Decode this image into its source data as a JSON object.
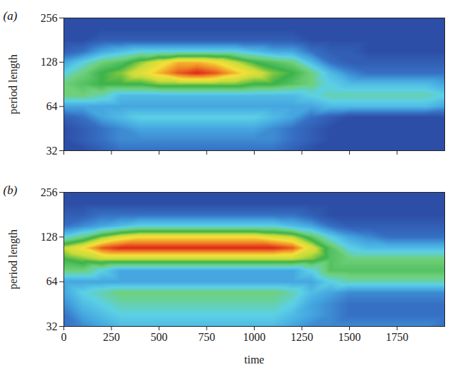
{
  "chart_data": [
    {
      "type": "heatmap",
      "title": "(a)",
      "y_label": "period length",
      "x": [
        0,
        100,
        200,
        300,
        400,
        500,
        600,
        700,
        800,
        900,
        1000,
        1100,
        1200,
        1300,
        1400,
        1500,
        1600,
        1700,
        1800,
        1900,
        2000
      ],
      "y": [
        32,
        38,
        45,
        54,
        64,
        76,
        91,
        108,
        128,
        152,
        181,
        215,
        256
      ],
      "cells": [
        [
          1,
          1,
          1.5,
          2,
          2,
          2,
          2,
          2,
          2,
          2,
          2,
          2,
          1.5,
          1,
          1,
          1,
          1,
          1,
          1,
          1,
          1
        ],
        [
          1,
          1.5,
          2,
          2.5,
          2.5,
          2.5,
          2.5,
          2.5,
          2.5,
          2.5,
          2.5,
          2.5,
          2,
          1.5,
          1,
          1,
          1,
          1,
          1,
          1,
          1
        ],
        [
          1,
          1.5,
          2,
          2.5,
          3,
          3,
          3,
          3,
          3,
          3,
          3,
          2.5,
          2,
          1.5,
          1,
          1,
          1,
          1,
          1,
          1,
          1
        ],
        [
          1.5,
          2,
          3,
          3.5,
          4,
          4,
          4,
          4,
          4,
          4,
          4,
          3.5,
          3,
          2,
          1.5,
          1,
          1,
          1,
          1,
          1,
          1
        ],
        [
          3,
          3,
          3,
          3,
          3,
          3,
          3,
          3,
          3,
          3,
          3,
          3,
          3,
          3,
          3.5,
          3.5,
          3.5,
          3.5,
          3.5,
          3.5,
          3
        ],
        [
          5,
          5,
          4.5,
          3.5,
          3.5,
          3.5,
          3.5,
          3.5,
          3.5,
          3.5,
          3.5,
          3.5,
          3.5,
          4,
          4.5,
          4.5,
          4.5,
          4.5,
          4.5,
          4.5,
          4
        ],
        [
          5,
          5.5,
          6,
          6,
          6,
          6.5,
          6.5,
          6.5,
          6.5,
          6.5,
          6,
          6,
          5.5,
          5,
          4,
          3.5,
          3.5,
          3.5,
          3.5,
          3.5,
          3
        ],
        [
          4,
          5,
          6,
          6.5,
          7.5,
          8.5,
          9.5,
          10,
          9.5,
          8.5,
          7.5,
          6.5,
          6,
          5,
          3.5,
          2.5,
          2,
          2,
          2,
          2,
          2
        ],
        [
          3,
          4,
          5,
          5.5,
          6.5,
          7.5,
          8.5,
          8.5,
          8,
          7,
          6,
          5.5,
          5,
          3.5,
          2,
          1.5,
          1.5,
          1.5,
          1.5,
          1.5,
          1.5
        ],
        [
          1.5,
          2,
          3,
          3.5,
          4,
          4,
          4,
          4,
          4,
          4,
          3.5,
          3,
          3,
          2,
          1.5,
          1.5,
          1,
          1,
          1,
          1,
          1
        ],
        [
          1,
          1,
          1.5,
          1.5,
          1.5,
          1.5,
          1.5,
          1.5,
          1.5,
          1.5,
          1.5,
          1.5,
          1.5,
          1,
          1,
          1,
          1,
          1,
          1,
          1,
          1
        ],
        [
          1,
          1,
          1,
          1,
          1,
          1,
          1,
          1,
          1,
          1,
          1,
          1,
          1,
          1,
          1,
          1,
          1,
          1,
          1,
          1,
          1
        ],
        [
          1,
          1,
          1,
          1,
          1,
          1,
          1,
          1,
          1,
          1,
          1,
          1,
          1,
          1,
          1,
          1,
          1,
          1,
          1,
          1,
          1
        ]
      ],
      "zlim": [
        0,
        10
      ],
      "xlim": [
        0,
        2000
      ],
      "xticks": [
        0,
        250,
        500,
        750,
        1000,
        1250,
        1500,
        1750
      ],
      "ylim": [
        32,
        256
      ],
      "yticks": [
        32,
        64,
        128,
        256
      ],
      "log": "y",
      "tick_labels": "y"
    },
    {
      "type": "heatmap",
      "title": "(b)",
      "y_label": "period length",
      "x_label": "time",
      "x": [
        0,
        100,
        200,
        300,
        400,
        500,
        600,
        700,
        800,
        900,
        1000,
        1100,
        1200,
        1300,
        1400,
        1500,
        1600,
        1700,
        1800,
        1900,
        2000
      ],
      "y": [
        32,
        38,
        45,
        54,
        64,
        76,
        91,
        108,
        128,
        152,
        181,
        215,
        256
      ],
      "cells": [
        [
          2,
          2.5,
          3,
          3.5,
          3.5,
          3.5,
          3.5,
          3.5,
          3.5,
          3.5,
          3.5,
          3.5,
          3,
          2.5,
          2.5,
          2.5,
          2.5,
          2.5,
          2.5,
          2.5,
          2
        ],
        [
          2,
          3,
          3.5,
          4,
          4,
          4,
          4,
          4,
          4,
          4,
          4,
          4,
          3.5,
          3,
          2.5,
          2,
          2,
          2,
          2,
          2,
          2
        ],
        [
          2.5,
          3.5,
          4,
          4.5,
          4.5,
          4.5,
          4.5,
          4.5,
          4.5,
          4.5,
          4.5,
          4.5,
          4,
          3,
          2.5,
          2,
          2,
          2,
          2,
          2,
          2
        ],
        [
          3,
          4,
          4.5,
          5,
          5,
          5,
          5,
          5,
          5,
          5,
          5,
          5,
          4.5,
          3.5,
          3,
          2.5,
          2.5,
          2.5,
          2.5,
          2.5,
          2.5
        ],
        [
          3,
          3,
          3,
          3,
          3,
          3,
          3,
          3,
          3,
          3,
          3,
          3,
          3,
          3,
          4,
          4.5,
          4.5,
          4.5,
          4.5,
          4.5,
          4.5
        ],
        [
          5,
          5,
          4,
          3,
          3,
          3,
          3,
          3,
          3,
          3,
          3,
          3,
          3,
          4,
          5.5,
          5.5,
          5.5,
          5.5,
          5.5,
          5.5,
          5.5
        ],
        [
          6,
          6.5,
          7,
          7,
          7,
          7,
          7,
          7,
          7,
          7,
          7,
          7,
          7,
          6.5,
          5.5,
          5,
          5,
          5,
          5,
          5,
          5
        ],
        [
          7,
          8,
          9.5,
          10,
          10,
          10,
          10,
          10,
          10,
          10,
          10,
          10,
          9.5,
          7.5,
          5.5,
          4,
          3.5,
          3.5,
          3.5,
          3.5,
          3.5
        ],
        [
          4,
          5,
          6.5,
          7.5,
          8,
          8,
          8,
          8,
          8,
          8,
          8,
          7.5,
          7,
          5.5,
          4,
          3,
          2.5,
          2,
          2,
          2,
          2
        ],
        [
          2,
          2.5,
          3,
          3.5,
          4,
          4,
          4,
          4,
          4,
          4,
          4,
          4,
          3.5,
          3,
          2,
          1.5,
          1.5,
          1.5,
          1.5,
          1.5,
          1.5
        ],
        [
          1.5,
          1.5,
          2,
          2,
          2,
          2,
          2,
          2,
          2,
          2,
          2,
          2,
          2,
          1.5,
          1,
          1,
          1,
          1,
          1,
          1,
          1
        ],
        [
          1,
          1,
          1,
          1,
          1,
          1,
          1,
          1,
          1,
          1,
          1,
          1,
          1,
          1,
          1,
          1,
          1,
          1,
          1,
          1,
          1
        ],
        [
          1,
          1,
          1,
          1,
          1,
          1,
          1,
          1,
          1,
          1,
          1,
          1,
          1,
          1,
          1,
          1,
          1,
          1,
          1,
          1,
          1
        ]
      ],
      "zlim": [
        0,
        10
      ],
      "xlim": [
        0,
        2000
      ],
      "xticks": [
        0,
        250,
        500,
        750,
        1000,
        1250,
        1500,
        1750
      ],
      "ylim": [
        32,
        256
      ],
      "yticks": [
        32,
        64,
        128,
        256
      ],
      "log": "y"
    }
  ]
}
